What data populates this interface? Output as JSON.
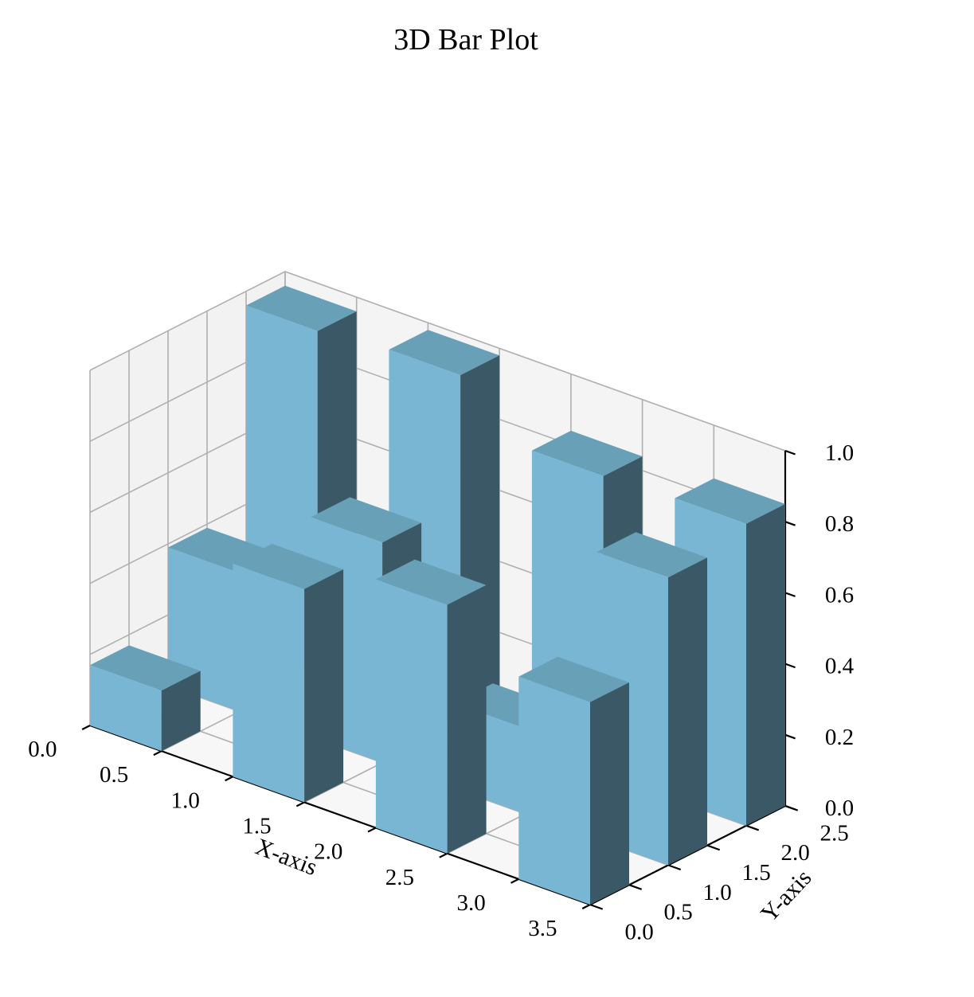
{
  "chart_data": {
    "type": "bar3d",
    "title": "3D Bar Plot",
    "xlabel": "X-axis",
    "ylabel": "Y-axis",
    "zlabel": "",
    "xlim": [
      0,
      3.5
    ],
    "ylim": [
      0,
      2.5
    ],
    "zlim": [
      0,
      1.0
    ],
    "xticks": [
      "0.0",
      "0.5",
      "1.0",
      "1.5",
      "2.0",
      "2.5",
      "3.0",
      "3.5"
    ],
    "yticks": [
      "0.0",
      "0.5",
      "1.0",
      "1.5",
      "2.0",
      "2.5"
    ],
    "zticks": [
      "0.0",
      "0.2",
      "0.4",
      "0.6",
      "0.8",
      "1.0"
    ],
    "bar_width": 0.5,
    "bar_depth": 0.5,
    "colors": {
      "front": "#78b6d3",
      "top": "#67a0b7",
      "side": "#3a5865",
      "pane_side": "#f2f2f2",
      "pane_back": "#f4f4f4",
      "pane_floor": "#f7f7f7"
    },
    "bars": [
      {
        "x": 0,
        "y": 0,
        "z": 0.17
      },
      {
        "x": 0,
        "y": 1,
        "z": 0.39
      },
      {
        "x": 0,
        "y": 2,
        "z": 0.96
      },
      {
        "x": 1,
        "y": 0,
        "z": 0.6
      },
      {
        "x": 1,
        "y": 1,
        "z": 0.62
      },
      {
        "x": 1,
        "y": 2,
        "z": 0.98
      },
      {
        "x": 2,
        "y": 0,
        "z": 0.7
      },
      {
        "x": 2,
        "y": 1,
        "z": 0.24
      },
      {
        "x": 2,
        "y": 2,
        "z": 0.84
      },
      {
        "x": 3,
        "y": 0,
        "z": 0.57
      },
      {
        "x": 3,
        "y": 1,
        "z": 0.81
      },
      {
        "x": 3,
        "y": 2,
        "z": 0.85
      }
    ]
  }
}
